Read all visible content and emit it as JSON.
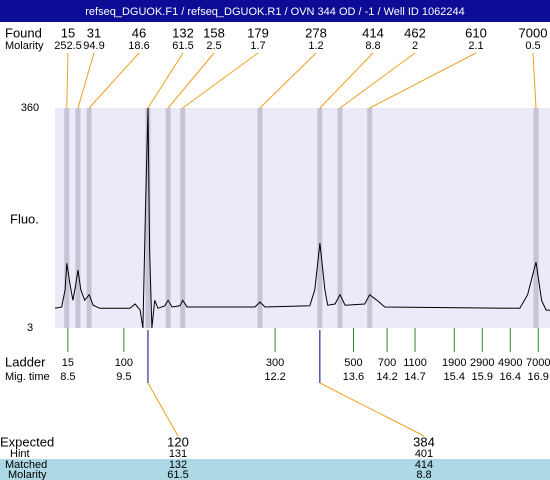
{
  "chart_data": {
    "type": "line",
    "title": "refseq_DGUOK.F1 / refseq_DGUOK.R1 / OVN 344 OD / -1 / Well ID 1062244",
    "y_label": "Fluo.",
    "xlim": [
      8.27,
      17.11
    ],
    "ylim": [
      3,
      360
    ],
    "yticks": [
      3,
      360
    ],
    "x": [
      8.27,
      8.39,
      8.45,
      8.48,
      8.54,
      8.59,
      8.64,
      8.68,
      8.73,
      8.8,
      8.88,
      8.95,
      9.07,
      9.61,
      9.7,
      9.79,
      9.84,
      9.89,
      9.93,
      9.96,
      10.0,
      10.05,
      10.11,
      10.23,
      10.29,
      10.36,
      10.5,
      10.55,
      10.63,
      11.84,
      11.93,
      12.02,
      12.82,
      12.91,
      13.0,
      13.09,
      13.14,
      13.27,
      13.36,
      13.45,
      13.8,
      13.89,
      14.02,
      14.16,
      16.57,
      16.71,
      16.86,
      16.96,
      17.04,
      17.11
    ],
    "series": [
      {
        "color": "#000000",
        "values": [
          35,
          37,
          65,
          108,
          73,
          48,
          73,
          97,
          65,
          48,
          57,
          40,
          35,
          35,
          42,
          32,
          3,
          211,
          360,
          130,
          3,
          48,
          35,
          39,
          48,
          37,
          39,
          48,
          37,
          37,
          45,
          37,
          39,
          65,
          141,
          65,
          40,
          42,
          57,
          40,
          42,
          57,
          48,
          37,
          35,
          57,
          110,
          48,
          32,
          32
        ]
      }
    ],
    "found": {
      "label": "Found",
      "molarity_label": "Molarity",
      "sizes": [
        15,
        31,
        46,
        132,
        158,
        179,
        278,
        414,
        462,
        610,
        7000
      ],
      "molarity": [
        252.5,
        94.9,
        18.6,
        61.5,
        2.5,
        1.7,
        1.2,
        8.8,
        2,
        2.1,
        0.5
      ],
      "times": [
        8.48,
        8.68,
        8.88,
        9.93,
        10.29,
        10.55,
        11.93,
        13.0,
        13.36,
        13.89,
        16.86
      ]
    },
    "ladder": {
      "label": "Ladder",
      "time_label": "Mig. time",
      "sizes": [
        15,
        100,
        300,
        500,
        700,
        1100,
        1900,
        2900,
        4900,
        7000
      ],
      "times": [
        8.5,
        9.5,
        12.2,
        13.6,
        14.2,
        14.7,
        15.4,
        15.9,
        16.4,
        16.9
      ]
    },
    "expected": {
      "label": "Expected",
      "hint_label": "Hint",
      "matched_label": "Matched",
      "molarity_label": "Molarity",
      "items": [
        {
          "expected": 120,
          "hint": 131,
          "matched": 132,
          "molarity": 61.5
        },
        {
          "expected": 384,
          "hint": 401,
          "matched": 414,
          "molarity": 8.8
        }
      ]
    }
  }
}
